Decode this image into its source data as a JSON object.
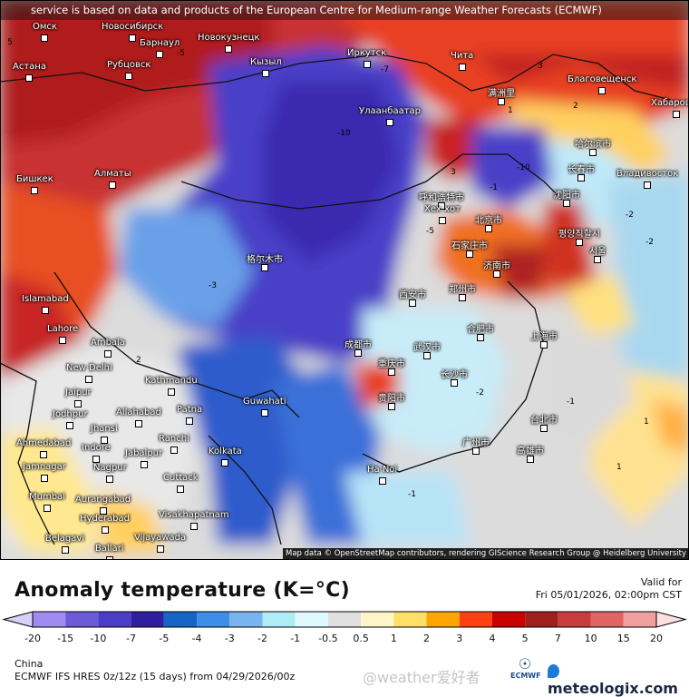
{
  "banner": "service is based on data and products of the European Centre for Medium-range Weather Forecasts (ECMWF)",
  "attribution": "Map data © OpenStreetMap contributors, rendering GIScience Research Group @ Heidelberg University",
  "cities": [
    "Омск",
    "Новосибирск",
    "Барнаул",
    "Новокузнецк",
    "Астана",
    "Рубцовск",
    "Кызыл",
    "Иркутск",
    "Чита",
    "满洲里",
    "Благовещенск",
    "Хабаровск",
    "Улаанбаатар",
    "哈尔滨市",
    "长春市",
    "Владивосток",
    "Бишкек",
    "Алматы",
    "呼和浩特市",
    "Хех хот",
    "北京市",
    "沈阳市",
    "평양직할시",
    "서울",
    "石家庄市",
    "济南市",
    "郑州市",
    "西安市",
    "格尔木市",
    "Islamabad",
    "Lahore",
    "Ambala",
    "New Delhi",
    "Kathmandu",
    "Jaipur",
    "Jodhpur",
    "Allahabad",
    "Patna",
    "Guwahati",
    "Jhansi",
    "Ranchi",
    "Ahmedabad",
    "Indore",
    "Jabalpur",
    "Kolkata",
    "Jamnagar",
    "Nagpur",
    "Cuttack",
    "Mumbai",
    "Aurangabad",
    "Hyderabad",
    "Visakhapatnam",
    "Belagavi",
    "Ballari",
    "Vijayawada",
    "上海市",
    "武汉市",
    "合肥市",
    "长沙市",
    "广州市",
    "台北市",
    "高雄市",
    "Ha Noi",
    "重庆市",
    "成都市",
    "贵阳市"
  ],
  "contour_labels": [
    "-10",
    "-10",
    "-7",
    "-5",
    "-5",
    "-3",
    "-2",
    "-1",
    "1",
    "2",
    "3",
    "3",
    "-2",
    "-1",
    "1",
    "1",
    "-1",
    "-2",
    "5",
    "2"
  ],
  "legend": {
    "title": "Anomaly temperature (K=°C)",
    "valid_label": "Valid for",
    "valid_time": "Fri 05/01/2026, 02:00pm CST",
    "ticks": [
      "-20",
      "-15",
      "-10",
      "-7",
      "-5",
      "-4",
      "-3",
      "-2",
      "-1",
      "-0.5",
      "0.5",
      "1",
      "2",
      "3",
      "4",
      "5",
      "7",
      "10",
      "15",
      "20"
    ],
    "colors": [
      "#a08cf0",
      "#6c5ad8",
      "#4b3dc8",
      "#2d1f9e",
      "#1565c8",
      "#3c8ee8",
      "#78b4f0",
      "#b0ecf5",
      "#e0f8ff",
      "#e0e0e0",
      "#fff5c8",
      "#ffe066",
      "#ffa500",
      "#ff4010",
      "#c80000",
      "#a01e1e",
      "#c83c3c",
      "#e06464",
      "#f0a0a0"
    ],
    "under_color": "#d8d0f8",
    "over_color": "#fce0e0"
  },
  "footer": {
    "region": "China",
    "model": "ECMWF IFS HRES 0z/12z (15 days) from  04/29/2026/00z",
    "watermark": "@weather爱好者",
    "ecmwf_logo": "ECMWF",
    "brand": "meteologix.com"
  }
}
